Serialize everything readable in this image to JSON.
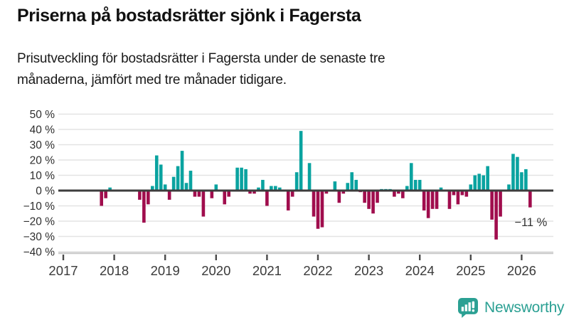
{
  "header": {
    "title": "Priserna på bostadsrätter sjönk i Fagersta",
    "subtitle_lines": [
      "Prisutveckling för bostadsrätter i Fagersta under de senaste tre",
      "månaderna, jämfört med tre månader tidigare."
    ]
  },
  "chart_data": {
    "type": "bar",
    "title": "Priserna på bostadsrätter sjönk i Fagersta",
    "unit": "%",
    "grid": true,
    "ylim": [
      -40,
      50
    ],
    "y_ticks": [
      {
        "value": 50,
        "label": "50 %"
      },
      {
        "value": 40,
        "label": "40 %"
      },
      {
        "value": 30,
        "label": "30 %"
      },
      {
        "value": 20,
        "label": "20 %"
      },
      {
        "value": 10,
        "label": "10 %"
      },
      {
        "value": 0,
        "label": "0 %"
      },
      {
        "value": -10,
        "label": "−10 %"
      },
      {
        "value": -20,
        "label": "−20 %"
      },
      {
        "value": -30,
        "label": "−30 %"
      },
      {
        "value": -40,
        "label": "−40 %"
      }
    ],
    "x_ticks": [
      {
        "year": 2017,
        "label": "2017"
      },
      {
        "year": 2018,
        "label": "2018"
      },
      {
        "year": 2019,
        "label": "2019"
      },
      {
        "year": 2020,
        "label": "2020"
      },
      {
        "year": 2021,
        "label": "2021"
      },
      {
        "year": 2022,
        "label": "2022"
      },
      {
        "year": 2023,
        "label": "2023"
      },
      {
        "year": 2024,
        "label": "2024"
      },
      {
        "year": 2025,
        "label": "2025"
      },
      {
        "year": 2026,
        "label": "2026"
      }
    ],
    "colors": {
      "positive": "#0aa3a0",
      "negative": "#a00d4d"
    },
    "annotation": {
      "text": "−11 %",
      "month": "2026-03",
      "value": -11
    },
    "points": [
      [
        "2017-10",
        -10
      ],
      [
        "2017-11",
        -5
      ],
      [
        "2017-12",
        2
      ],
      [
        "2018-07",
        -6
      ],
      [
        "2018-08",
        -21
      ],
      [
        "2018-09",
        -9
      ],
      [
        "2018-10",
        3
      ],
      [
        "2018-11",
        23
      ],
      [
        "2018-12",
        17
      ],
      [
        "2019-01",
        4
      ],
      [
        "2019-02",
        -6
      ],
      [
        "2019-03",
        9
      ],
      [
        "2019-04",
        16
      ],
      [
        "2019-05",
        26
      ],
      [
        "2019-06",
        5
      ],
      [
        "2019-07",
        13
      ],
      [
        "2019-08",
        -4
      ],
      [
        "2019-09",
        -4
      ],
      [
        "2019-10",
        -17
      ],
      [
        "2019-12",
        -5
      ],
      [
        "2020-01",
        4
      ],
      [
        "2020-03",
        -9
      ],
      [
        "2020-04",
        -4
      ],
      [
        "2020-06",
        15
      ],
      [
        "2020-07",
        15
      ],
      [
        "2020-08",
        14
      ],
      [
        "2020-09",
        -2
      ],
      [
        "2020-10",
        -2
      ],
      [
        "2020-11",
        2
      ],
      [
        "2020-12",
        7
      ],
      [
        "2021-01",
        -10
      ],
      [
        "2021-02",
        3
      ],
      [
        "2021-03",
        3
      ],
      [
        "2021-04",
        2
      ],
      [
        "2021-06",
        -13
      ],
      [
        "2021-07",
        -4
      ],
      [
        "2021-08",
        12
      ],
      [
        "2021-09",
        39
      ],
      [
        "2021-11",
        18
      ],
      [
        "2021-12",
        -17
      ],
      [
        "2022-01",
        -25
      ],
      [
        "2022-02",
        -24
      ],
      [
        "2022-03",
        -2
      ],
      [
        "2022-05",
        6
      ],
      [
        "2022-06",
        -8
      ],
      [
        "2022-07",
        -2
      ],
      [
        "2022-08",
        5
      ],
      [
        "2022-09",
        12
      ],
      [
        "2022-10",
        7
      ],
      [
        "2022-11",
        -1
      ],
      [
        "2022-12",
        -8
      ],
      [
        "2023-01",
        -12
      ],
      [
        "2023-02",
        -15
      ],
      [
        "2023-03",
        -8
      ],
      [
        "2023-04",
        1
      ],
      [
        "2023-05",
        1
      ],
      [
        "2023-06",
        1
      ],
      [
        "2023-07",
        -4
      ],
      [
        "2023-08",
        -2
      ],
      [
        "2023-09",
        -5
      ],
      [
        "2023-10",
        3
      ],
      [
        "2023-11",
        18
      ],
      [
        "2023-12",
        7
      ],
      [
        "2024-01",
        7
      ],
      [
        "2024-02",
        -13
      ],
      [
        "2024-03",
        -18
      ],
      [
        "2024-04",
        -12
      ],
      [
        "2024-05",
        -12
      ],
      [
        "2024-06",
        2
      ],
      [
        "2024-08",
        -12
      ],
      [
        "2024-09",
        -3
      ],
      [
        "2024-10",
        -9
      ],
      [
        "2024-11",
        -3
      ],
      [
        "2024-12",
        -4
      ],
      [
        "2025-01",
        4
      ],
      [
        "2025-02",
        10
      ],
      [
        "2025-03",
        11
      ],
      [
        "2025-04",
        10
      ],
      [
        "2025-05",
        16
      ],
      [
        "2025-06",
        -19
      ],
      [
        "2025-07",
        -32
      ],
      [
        "2025-08",
        -17
      ],
      [
        "2025-10",
        4
      ],
      [
        "2025-11",
        24
      ],
      [
        "2025-12",
        22
      ],
      [
        "2026-01",
        12
      ],
      [
        "2026-02",
        14
      ],
      [
        "2026-03",
        -11
      ]
    ]
  },
  "footer": {
    "brand": "Newsworthy",
    "brand_color": "#2ba093"
  }
}
